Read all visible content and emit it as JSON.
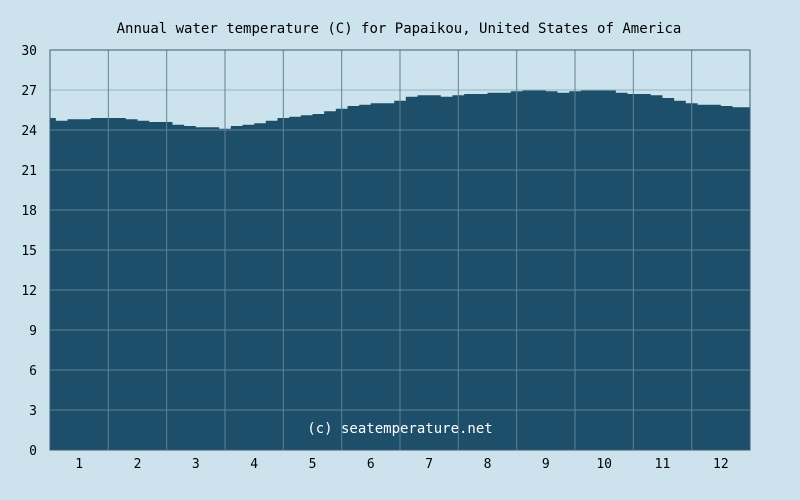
{
  "chart_data": {
    "type": "area",
    "title": "Annual water temperature (C) for Papaikou, United States of America",
    "xlabel": "",
    "ylabel": "",
    "categories": [
      "1",
      "2",
      "3",
      "4",
      "5",
      "6",
      "7",
      "8",
      "9",
      "10",
      "11",
      "12"
    ],
    "x_ticks": [
      "1",
      "2",
      "3",
      "4",
      "5",
      "6",
      "7",
      "8",
      "9",
      "10",
      "11",
      "12"
    ],
    "y_ticks": [
      "0",
      "3",
      "6",
      "9",
      "12",
      "15",
      "18",
      "21",
      "24",
      "27",
      "30"
    ],
    "ylim": [
      0,
      30
    ],
    "xlim": [
      0.5,
      12.5
    ],
    "grid": true,
    "legend": "none",
    "series": [
      {
        "x": [
          0.5,
          0.6,
          0.8,
          1.0,
          1.2,
          1.4,
          1.5,
          1.6,
          1.8,
          2.0,
          2.2,
          2.4,
          2.6,
          2.8,
          3.0,
          3.2,
          3.4,
          3.5,
          3.6,
          3.8,
          4.0,
          4.2,
          4.4,
          4.6,
          4.8,
          5.0,
          5.2,
          5.4,
          5.6,
          5.8,
          6.0,
          6.2,
          6.4,
          6.6,
          6.8,
          7.0,
          7.2,
          7.4,
          7.6,
          7.8,
          8.0,
          8.2,
          8.4,
          8.6,
          8.8,
          9.0,
          9.2,
          9.4,
          9.6,
          9.8,
          10.0,
          10.2,
          10.4,
          10.6,
          10.8,
          11.0,
          11.2,
          11.4,
          11.6,
          11.8,
          12.0,
          12.2,
          12.5
        ],
        "values": [
          24.9,
          24.7,
          24.8,
          24.8,
          24.9,
          24.9,
          24.9,
          24.9,
          24.8,
          24.7,
          24.6,
          24.6,
          24.4,
          24.3,
          24.2,
          24.2,
          24.1,
          24.1,
          24.3,
          24.4,
          24.5,
          24.7,
          24.9,
          25.0,
          25.1,
          25.2,
          25.4,
          25.6,
          25.8,
          25.9,
          26.0,
          26.0,
          26.2,
          26.5,
          26.6,
          26.6,
          26.5,
          26.6,
          26.7,
          26.7,
          26.8,
          26.8,
          26.9,
          27.0,
          27.0,
          26.9,
          26.8,
          26.9,
          27.0,
          27.0,
          27.0,
          26.8,
          26.7,
          26.7,
          26.6,
          26.4,
          26.2,
          26.0,
          25.9,
          25.9,
          25.8,
          25.7,
          25.6
        ]
      }
    ],
    "annotations": [
      "(c) seatemperature.net"
    ],
    "colors": {
      "background": "#cce3ee",
      "area_fill": "#1d4f6b",
      "plot_background": "#cce3ee",
      "grid": "#5f8296",
      "grid_top": "#8fb3c6",
      "axis": "#3d5d70",
      "text": "#000000",
      "watermark": "#ffffff"
    }
  }
}
